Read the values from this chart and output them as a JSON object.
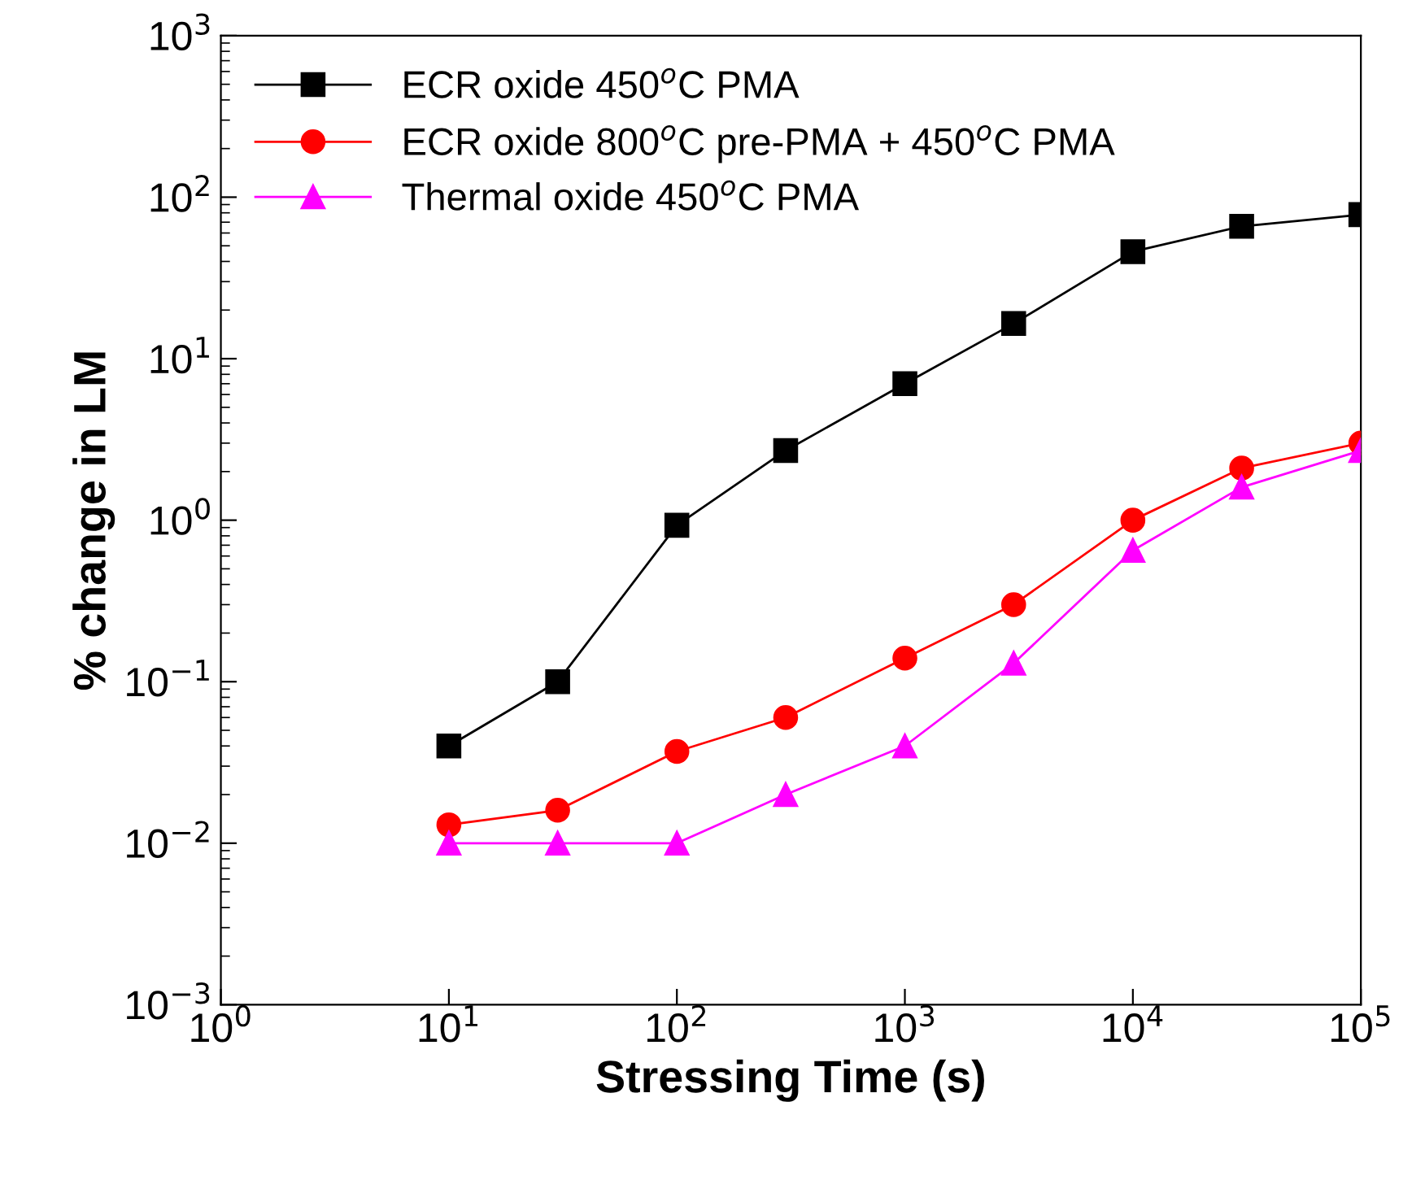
{
  "chart_data": {
    "type": "line",
    "xlabel": "Stressing Time (s)",
    "ylabel": "% change in LM",
    "log": "xy",
    "legend": "top left",
    "grid": false,
    "line_style": "solid",
    "x": [
      10,
      30,
      100,
      300,
      1000,
      3000,
      10000,
      30000,
      100000
    ],
    "series": [
      {
        "name": "ECR oxide 450$^{o}$C PMA",
        "color": "#000000",
        "marker": "square",
        "values": [
          0.04,
          0.1,
          0.93,
          2.7,
          7.0,
          16.5,
          46,
          66,
          78
        ]
      },
      {
        "name": "ECR oxide 800$^{o}$C pre-PMA + 450$^{o}$C PMA",
        "color": "#ff0000",
        "marker": "circle",
        "values": [
          0.013,
          0.016,
          0.037,
          0.06,
          0.14,
          0.3,
          1.0,
          2.1,
          3.0
        ]
      },
      {
        "name": "Thermal oxide 450$^{o}$C PMA",
        "color": "#ff00ff",
        "marker": "triangle",
        "values": [
          0.01,
          0.01,
          0.01,
          0.02,
          0.04,
          0.13,
          0.65,
          1.6,
          2.7
        ]
      }
    ],
    "xlim": [
      1,
      100000
    ],
    "xticks": [
      {
        "value": 1,
        "label": "10$^{0}$"
      },
      {
        "value": 10,
        "label": "10$^{1}$"
      },
      {
        "value": 100,
        "label": "10$^{2}$"
      },
      {
        "value": 1000,
        "label": "10$^{3}$"
      },
      {
        "value": 10000,
        "label": "10$^{4}$"
      },
      {
        "value": 100000,
        "label": "10$^{5}$"
      }
    ],
    "ylim": [
      0.001,
      1000
    ],
    "yticks": [
      {
        "value": 0.001,
        "label": "10$^{−3}$"
      },
      {
        "value": 0.01,
        "label": "10$^{−2}$"
      },
      {
        "value": 0.1,
        "label": "10$^{−1}$"
      },
      {
        "value": 1,
        "label": "10$^{0}$"
      },
      {
        "value": 10,
        "label": "10$^{1}$"
      },
      {
        "value": 100,
        "label": "10$^{2}$"
      },
      {
        "value": 1000,
        "label": "10$^{3}$"
      }
    ]
  }
}
